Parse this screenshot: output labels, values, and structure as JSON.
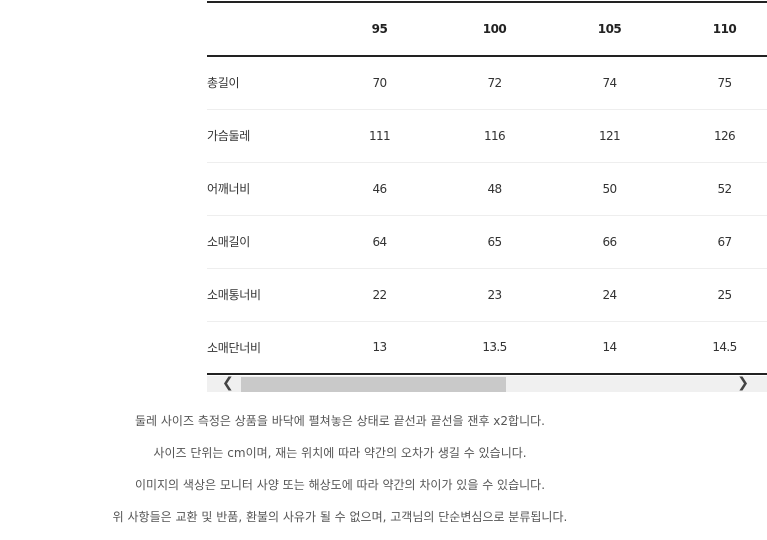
{
  "size_table": {
    "headers": [
      "",
      "95",
      "100",
      "105",
      "110"
    ],
    "rows": [
      {
        "label": "총길이",
        "values": [
          "70",
          "72",
          "74",
          "75"
        ]
      },
      {
        "label": "가슴둘레",
        "values": [
          "111",
          "116",
          "121",
          "126"
        ]
      },
      {
        "label": "어깨너비",
        "values": [
          "46",
          "48",
          "50",
          "52"
        ]
      },
      {
        "label": "소매길이",
        "values": [
          "64",
          "65",
          "66",
          "67"
        ]
      },
      {
        "label": "소매통너비",
        "values": [
          "22",
          "23",
          "24",
          "25"
        ]
      },
      {
        "label": "소매단너비",
        "values": [
          "13",
          "13.5",
          "14",
          "14.5"
        ]
      }
    ]
  },
  "scrollbar": {
    "left_arrow": "❮",
    "right_arrow": "❯"
  },
  "notes": [
    "둘레 사이즈 측정은 상품을 바닥에 펼쳐놓은 상태로 끝선과 끝선을 잰후 x2합니다.",
    "사이즈 단위는 cm이며, 재는 위치에 따라 약간의 오차가 생길 수 있습니다.",
    "이미지의 색상은 모니터 사양 또는 해상도에 따라 약간의 차이가 있을 수 있습니다.",
    "위 사항들은 교환 및 반품, 환불의 사유가 될 수 없으며, 고객님의 단순변심으로 분류됩니다."
  ]
}
